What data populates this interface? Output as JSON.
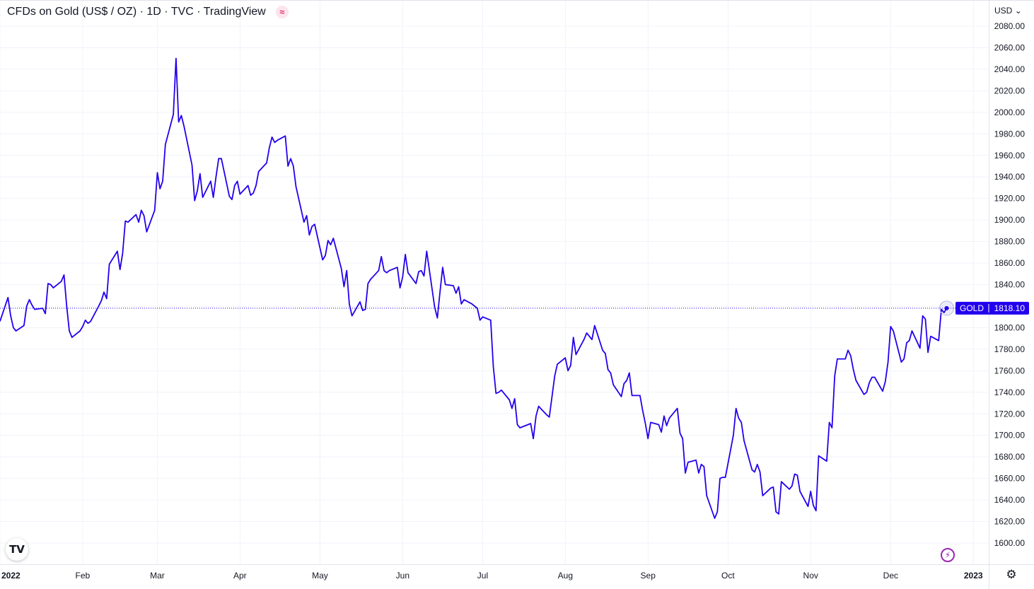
{
  "title": "CFDs on Gold (US$ / OZ) · 1D · TVC · TradingView",
  "currency": "USD",
  "colors": {
    "line": "#2200ee",
    "badge": "#2200ee",
    "grid": "#f0f3fa",
    "axis_text": "#131722"
  },
  "icons": {
    "wave": "wave-icon",
    "logo": "tradingview-logo-icon",
    "flash": "lightning-icon",
    "settings": "gear-icon"
  },
  "logo_text": "TV",
  "chart_data": {
    "type": "line",
    "series": [
      {
        "symbol": "GOLD",
        "last_value": "1818.10",
        "points": [
          [
            "2022-01-01",
            1806
          ],
          [
            "2022-01-04",
            1828
          ],
          [
            "2022-01-05",
            1811
          ],
          [
            "2022-01-06",
            1800
          ],
          [
            "2022-01-07",
            1797
          ],
          [
            "2022-01-10",
            1802
          ],
          [
            "2022-01-11",
            1820
          ],
          [
            "2022-01-12",
            1826
          ],
          [
            "2022-01-13",
            1821
          ],
          [
            "2022-01-14",
            1817
          ],
          [
            "2022-01-17",
            1818
          ],
          [
            "2022-01-18",
            1813
          ],
          [
            "2022-01-19",
            1841
          ],
          [
            "2022-01-20",
            1840
          ],
          [
            "2022-01-21",
            1837
          ],
          [
            "2022-01-24",
            1843
          ],
          [
            "2022-01-25",
            1849
          ],
          [
            "2022-01-26",
            1820
          ],
          [
            "2022-01-27",
            1797
          ],
          [
            "2022-01-28",
            1791
          ],
          [
            "2022-01-31",
            1797
          ],
          [
            "2022-02-01",
            1801
          ],
          [
            "2022-02-02",
            1807
          ],
          [
            "2022-02-03",
            1804
          ],
          [
            "2022-02-04",
            1806
          ],
          [
            "2022-02-07",
            1820
          ],
          [
            "2022-02-08",
            1825
          ],
          [
            "2022-02-09",
            1833
          ],
          [
            "2022-02-10",
            1827
          ],
          [
            "2022-02-11",
            1859
          ],
          [
            "2022-02-14",
            1871
          ],
          [
            "2022-02-15",
            1854
          ],
          [
            "2022-02-16",
            1869
          ],
          [
            "2022-02-17",
            1899
          ],
          [
            "2022-02-18",
            1898
          ],
          [
            "2022-02-21",
            1905
          ],
          [
            "2022-02-22",
            1898
          ],
          [
            "2022-02-23",
            1909
          ],
          [
            "2022-02-24",
            1904
          ],
          [
            "2022-02-25",
            1889
          ],
          [
            "2022-02-28",
            1909
          ],
          [
            "2022-03-01",
            1944
          ],
          [
            "2022-03-02",
            1929
          ],
          [
            "2022-03-03",
            1936
          ],
          [
            "2022-03-04",
            1970
          ],
          [
            "2022-03-07",
            1998
          ],
          [
            "2022-03-08",
            2050
          ],
          [
            "2022-03-09",
            1991
          ],
          [
            "2022-03-10",
            1997
          ],
          [
            "2022-03-11",
            1987
          ],
          [
            "2022-03-14",
            1951
          ],
          [
            "2022-03-15",
            1918
          ],
          [
            "2022-03-16",
            1927
          ],
          [
            "2022-03-17",
            1943
          ],
          [
            "2022-03-18",
            1921
          ],
          [
            "2022-03-21",
            1936
          ],
          [
            "2022-03-22",
            1921
          ],
          [
            "2022-03-23",
            1940
          ],
          [
            "2022-03-24",
            1957
          ],
          [
            "2022-03-25",
            1957
          ],
          [
            "2022-03-28",
            1922
          ],
          [
            "2022-03-29",
            1919
          ],
          [
            "2022-03-30",
            1932
          ],
          [
            "2022-03-31",
            1936
          ],
          [
            "2022-04-01",
            1924
          ],
          [
            "2022-04-04",
            1932
          ],
          [
            "2022-04-05",
            1923
          ],
          [
            "2022-04-06",
            1925
          ],
          [
            "2022-04-07",
            1932
          ],
          [
            "2022-04-08",
            1945
          ],
          [
            "2022-04-11",
            1953
          ],
          [
            "2022-04-12",
            1967
          ],
          [
            "2022-04-13",
            1977
          ],
          [
            "2022-04-14",
            1972
          ],
          [
            "2022-04-15",
            1974
          ],
          [
            "2022-04-18",
            1978
          ],
          [
            "2022-04-19",
            1950
          ],
          [
            "2022-04-20",
            1957
          ],
          [
            "2022-04-21",
            1950
          ],
          [
            "2022-04-22",
            1931
          ],
          [
            "2022-04-25",
            1898
          ],
          [
            "2022-04-26",
            1904
          ],
          [
            "2022-04-27",
            1886
          ],
          [
            "2022-04-28",
            1894
          ],
          [
            "2022-04-29",
            1896
          ],
          [
            "2022-05-02",
            1863
          ],
          [
            "2022-05-03",
            1867
          ],
          [
            "2022-05-04",
            1881
          ],
          [
            "2022-05-05",
            1877
          ],
          [
            "2022-05-06",
            1883
          ],
          [
            "2022-05-09",
            1855
          ],
          [
            "2022-05-10",
            1838
          ],
          [
            "2022-05-11",
            1853
          ],
          [
            "2022-05-12",
            1822
          ],
          [
            "2022-05-13",
            1811
          ],
          [
            "2022-05-16",
            1824
          ],
          [
            "2022-05-17",
            1816
          ],
          [
            "2022-05-18",
            1817
          ],
          [
            "2022-05-19",
            1841
          ],
          [
            "2022-05-20",
            1845
          ],
          [
            "2022-05-23",
            1853
          ],
          [
            "2022-05-24",
            1866
          ],
          [
            "2022-05-25",
            1853
          ],
          [
            "2022-05-26",
            1851
          ],
          [
            "2022-05-27",
            1853
          ],
          [
            "2022-05-30",
            1856
          ],
          [
            "2022-05-31",
            1837
          ],
          [
            "2022-06-01",
            1847
          ],
          [
            "2022-06-02",
            1868
          ],
          [
            "2022-06-03",
            1851
          ],
          [
            "2022-06-06",
            1841
          ],
          [
            "2022-06-07",
            1852
          ],
          [
            "2022-06-08",
            1853
          ],
          [
            "2022-06-09",
            1848
          ],
          [
            "2022-06-10",
            1871
          ],
          [
            "2022-06-13",
            1819
          ],
          [
            "2022-06-14",
            1809
          ],
          [
            "2022-06-15",
            1833
          ],
          [
            "2022-06-16",
            1856
          ],
          [
            "2022-06-17",
            1840
          ],
          [
            "2022-06-20",
            1839
          ],
          [
            "2022-06-21",
            1832
          ],
          [
            "2022-06-22",
            1838
          ],
          [
            "2022-06-23",
            1822
          ],
          [
            "2022-06-24",
            1826
          ],
          [
            "2022-06-27",
            1822
          ],
          [
            "2022-06-28",
            1820
          ],
          [
            "2022-06-29",
            1818
          ],
          [
            "2022-06-30",
            1807
          ],
          [
            "2022-07-01",
            1810
          ],
          [
            "2022-07-04",
            1807
          ],
          [
            "2022-07-05",
            1764
          ],
          [
            "2022-07-06",
            1739
          ],
          [
            "2022-07-07",
            1740
          ],
          [
            "2022-07-08",
            1742
          ],
          [
            "2022-07-11",
            1733
          ],
          [
            "2022-07-12",
            1725
          ],
          [
            "2022-07-13",
            1734
          ],
          [
            "2022-07-14",
            1710
          ],
          [
            "2022-07-15",
            1707
          ],
          [
            "2022-07-18",
            1710
          ],
          [
            "2022-07-19",
            1711
          ],
          [
            "2022-07-20",
            1697
          ],
          [
            "2022-07-21",
            1718
          ],
          [
            "2022-07-22",
            1727
          ],
          [
            "2022-07-25",
            1719
          ],
          [
            "2022-07-26",
            1717
          ],
          [
            "2022-07-27",
            1736
          ],
          [
            "2022-07-28",
            1755
          ],
          [
            "2022-07-29",
            1766
          ],
          [
            "2022-08-01",
            1772
          ],
          [
            "2022-08-02",
            1760
          ],
          [
            "2022-08-03",
            1765
          ],
          [
            "2022-08-04",
            1791
          ],
          [
            "2022-08-05",
            1775
          ],
          [
            "2022-08-08",
            1789
          ],
          [
            "2022-08-09",
            1795
          ],
          [
            "2022-08-10",
            1792
          ],
          [
            "2022-08-11",
            1789
          ],
          [
            "2022-08-12",
            1802
          ],
          [
            "2022-08-15",
            1779
          ],
          [
            "2022-08-16",
            1776
          ],
          [
            "2022-08-17",
            1761
          ],
          [
            "2022-08-18",
            1758
          ],
          [
            "2022-08-19",
            1747
          ],
          [
            "2022-08-22",
            1736
          ],
          [
            "2022-08-23",
            1748
          ],
          [
            "2022-08-24",
            1751
          ],
          [
            "2022-08-25",
            1758
          ],
          [
            "2022-08-26",
            1737
          ],
          [
            "2022-08-29",
            1737
          ],
          [
            "2022-08-30",
            1723
          ],
          [
            "2022-08-31",
            1711
          ],
          [
            "2022-09-01",
            1697
          ],
          [
            "2022-09-02",
            1712
          ],
          [
            "2022-09-05",
            1710
          ],
          [
            "2022-09-06",
            1703
          ],
          [
            "2022-09-07",
            1718
          ],
          [
            "2022-09-08",
            1709
          ],
          [
            "2022-09-09",
            1716
          ],
          [
            "2022-09-12",
            1725
          ],
          [
            "2022-09-13",
            1702
          ],
          [
            "2022-09-14",
            1697
          ],
          [
            "2022-09-15",
            1665
          ],
          [
            "2022-09-16",
            1675
          ],
          [
            "2022-09-19",
            1677
          ],
          [
            "2022-09-20",
            1665
          ],
          [
            "2022-09-21",
            1673
          ],
          [
            "2022-09-22",
            1671
          ],
          [
            "2022-09-23",
            1644
          ],
          [
            "2022-09-26",
            1623
          ],
          [
            "2022-09-27",
            1629
          ],
          [
            "2022-09-28",
            1660
          ],
          [
            "2022-09-29",
            1661
          ],
          [
            "2022-09-30",
            1661
          ],
          [
            "2022-10-03",
            1700
          ],
          [
            "2022-10-04",
            1725
          ],
          [
            "2022-10-05",
            1716
          ],
          [
            "2022-10-06",
            1712
          ],
          [
            "2022-10-07",
            1695
          ],
          [
            "2022-10-10",
            1668
          ],
          [
            "2022-10-11",
            1666
          ],
          [
            "2022-10-12",
            1673
          ],
          [
            "2022-10-13",
            1666
          ],
          [
            "2022-10-14",
            1644
          ],
          [
            "2022-10-17",
            1651
          ],
          [
            "2022-10-18",
            1652
          ],
          [
            "2022-10-19",
            1629
          ],
          [
            "2022-10-20",
            1627
          ],
          [
            "2022-10-21",
            1657
          ],
          [
            "2022-10-24",
            1650
          ],
          [
            "2022-10-25",
            1653
          ],
          [
            "2022-10-26",
            1664
          ],
          [
            "2022-10-27",
            1663
          ],
          [
            "2022-10-28",
            1648
          ],
          [
            "2022-10-31",
            1634
          ],
          [
            "2022-11-01",
            1648
          ],
          [
            "2022-11-02",
            1635
          ],
          [
            "2022-11-03",
            1630
          ],
          [
            "2022-11-04",
            1681
          ],
          [
            "2022-11-07",
            1676
          ],
          [
            "2022-11-08",
            1712
          ],
          [
            "2022-11-09",
            1707
          ],
          [
            "2022-11-10",
            1755
          ],
          [
            "2022-11-11",
            1771
          ],
          [
            "2022-11-14",
            1771
          ],
          [
            "2022-11-15",
            1779
          ],
          [
            "2022-11-16",
            1774
          ],
          [
            "2022-11-17",
            1761
          ],
          [
            "2022-11-18",
            1751
          ],
          [
            "2022-11-21",
            1738
          ],
          [
            "2022-11-22",
            1740
          ],
          [
            "2022-11-23",
            1749
          ],
          [
            "2022-11-24",
            1754
          ],
          [
            "2022-11-25",
            1754
          ],
          [
            "2022-11-28",
            1741
          ],
          [
            "2022-11-29",
            1750
          ],
          [
            "2022-11-30",
            1768
          ],
          [
            "2022-12-01",
            1801
          ],
          [
            "2022-12-02",
            1797
          ],
          [
            "2022-12-05",
            1768
          ],
          [
            "2022-12-06",
            1771
          ],
          [
            "2022-12-07",
            1786
          ],
          [
            "2022-12-08",
            1788
          ],
          [
            "2022-12-09",
            1797
          ],
          [
            "2022-12-12",
            1781
          ],
          [
            "2022-12-13",
            1811
          ],
          [
            "2022-12-14",
            1808
          ],
          [
            "2022-12-15",
            1777
          ],
          [
            "2022-12-16",
            1792
          ],
          [
            "2022-12-19",
            1788
          ],
          [
            "2022-12-20",
            1817
          ],
          [
            "2022-12-21",
            1814
          ],
          [
            "2022-12-22",
            1818.1
          ]
        ]
      }
    ],
    "x_range": [
      "2022-01-01",
      "2023-01-02"
    ],
    "ylim": [
      1587,
      2090
    ],
    "y_ticks": [
      1600,
      1620,
      1640,
      1660,
      1680,
      1700,
      1720,
      1740,
      1760,
      1780,
      1800,
      1820,
      1840,
      1860,
      1880,
      1900,
      1920,
      1940,
      1960,
      1980,
      2000,
      2020,
      2040,
      2060,
      2080
    ],
    "y_tick_labels": [
      "1600.00",
      "1620.00",
      "1640.00",
      "1660.00",
      "1680.00",
      "1700.00",
      "1720.00",
      "1740.00",
      "1760.00",
      "1780.00",
      "1800.00",
      "1820.00",
      "1840.00",
      "1860.00",
      "1880.00",
      "1900.00",
      "1920.00",
      "1940.00",
      "1960.00",
      "1980.00",
      "2000.00",
      "2020.00",
      "2040.00",
      "2060.00",
      "2080.00"
    ],
    "x_ticks": [
      {
        "date": "2022-01-01",
        "label": "2022",
        "bold": true
      },
      {
        "date": "2022-02-01",
        "label": "Feb",
        "bold": false
      },
      {
        "date": "2022-03-01",
        "label": "Mar",
        "bold": false
      },
      {
        "date": "2022-04-01",
        "label": "Apr",
        "bold": false
      },
      {
        "date": "2022-05-01",
        "label": "May",
        "bold": false
      },
      {
        "date": "2022-06-01",
        "label": "Jun",
        "bold": false
      },
      {
        "date": "2022-07-01",
        "label": "Jul",
        "bold": false
      },
      {
        "date": "2022-08-01",
        "label": "Aug",
        "bold": false
      },
      {
        "date": "2022-09-01",
        "label": "Sep",
        "bold": false
      },
      {
        "date": "2022-10-01",
        "label": "Oct",
        "bold": false
      },
      {
        "date": "2022-11-01",
        "label": "Nov",
        "bold": false
      },
      {
        "date": "2022-12-01",
        "label": "Dec",
        "bold": false
      },
      {
        "date": "2023-01-01",
        "label": "2023",
        "bold": true
      }
    ],
    "grid": true,
    "price_line": true
  }
}
